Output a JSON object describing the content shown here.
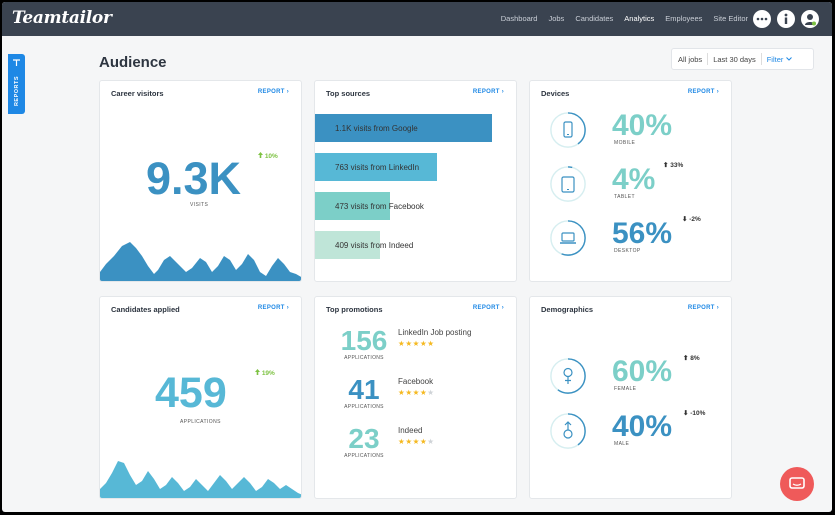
{
  "app": {
    "logo": "Teamtailor"
  },
  "nav": [
    "Dashboard",
    "Jobs",
    "Candidates",
    "Analytics",
    "Employees",
    "Site Editor"
  ],
  "sidebar_tab": "REPORTS",
  "page_title": "Audience",
  "filters": {
    "all_jobs": "All jobs",
    "period": "Last 30 days",
    "filter": "Filter"
  },
  "report_link": "REPORT",
  "career_visitors": {
    "title": "Career visitors",
    "value": "9.3K",
    "label": "VISITS",
    "change": "10%"
  },
  "top_sources": {
    "title": "Top sources",
    "items": [
      {
        "label": "1.1K visits from Google",
        "share": 0.87,
        "color": "#3b91c2"
      },
      {
        "label": "763 visits from LinkedIn",
        "share": 0.6,
        "color": "#57b8d6"
      },
      {
        "label": "473 visits from Facebook",
        "share": 0.37,
        "color": "#7ccfc8"
      },
      {
        "label": "409 visits from Indeed",
        "share": 0.32,
        "color": "#bfe5d8"
      }
    ]
  },
  "devices": {
    "title": "Devices",
    "items": [
      {
        "name": "MOBILE",
        "value": "40%",
        "change": "",
        "icon": "mobile-icon",
        "fraction": 0.4
      },
      {
        "name": "TABLET",
        "value": "4%",
        "change": "33%",
        "icon": "tablet-icon",
        "fraction": 0.04
      },
      {
        "name": "DESKTOP",
        "value": "56%",
        "change": "-2%",
        "icon": "desktop-icon",
        "fraction": 0.56
      }
    ]
  },
  "candidates_applied": {
    "title": "Candidates applied",
    "value": "459",
    "label": "APPLICATIONS",
    "change": "19%"
  },
  "top_promotions": {
    "title": "Top promotions",
    "items": [
      {
        "value": "156",
        "label": "APPLICATIONS",
        "name": "LinkedIn Job posting",
        "rating": 5
      },
      {
        "value": "41",
        "label": "APPLICATIONS",
        "name": "Facebook",
        "rating": 4
      },
      {
        "value": "23",
        "label": "APPLICATIONS",
        "name": "Indeed",
        "rating": 4
      }
    ]
  },
  "demographics": {
    "title": "Demographics",
    "items": [
      {
        "name": "FEMALE",
        "value": "60%",
        "change": "8%",
        "icon": "female-icon",
        "fraction": 0.6
      },
      {
        "name": "MALE",
        "value": "40%",
        "change": "-10%",
        "icon": "male-icon",
        "fraction": 0.4
      }
    ]
  },
  "colors": {
    "topbar": "#3a4350",
    "accent": "#1e88e5",
    "primary": "#3b91c2",
    "teal": "#7ccfc8",
    "positive": "#7dc242",
    "chat": "#ef5a5a"
  }
}
